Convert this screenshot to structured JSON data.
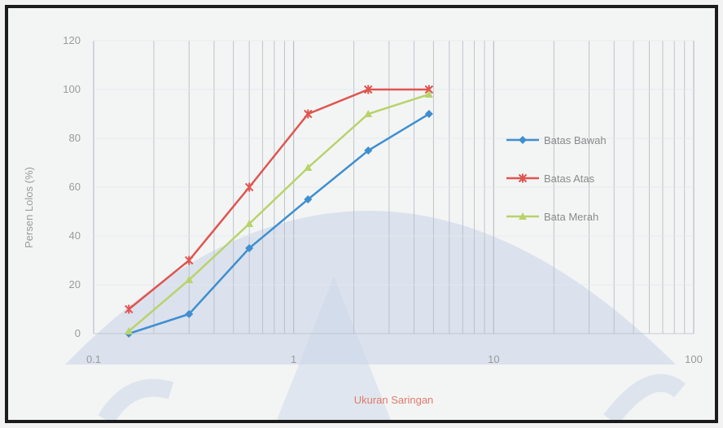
{
  "chart_data": {
    "type": "line",
    "title": "",
    "xlabel": "Ukuran Saringan",
    "ylabel": "Persen Lolos (%)",
    "x_scale": "log",
    "xlim": [
      0.1,
      100
    ],
    "ylim": [
      0,
      120
    ],
    "x_ticks": [
      0.1,
      1,
      10,
      100
    ],
    "x_tick_labels": [
      "0.1",
      "1",
      "10",
      "100"
    ],
    "y_ticks": [
      0,
      20,
      40,
      60,
      80,
      100,
      120
    ],
    "y_tick_labels": [
      "0",
      "20",
      "40",
      "60",
      "80",
      "100",
      "120"
    ],
    "grid": "vertical",
    "legend_position": "right",
    "x": [
      0.15,
      0.3,
      0.6,
      1.18,
      2.36,
      4.75
    ],
    "series": [
      {
        "name": "Batas Bawah",
        "color": "#3f8fd0",
        "marker": "diamond",
        "values": [
          0,
          8,
          35,
          55,
          75,
          90
        ]
      },
      {
        "name": "Batas Atas",
        "color": "#e0554f",
        "marker": "star",
        "values": [
          10,
          30,
          60,
          90,
          100,
          100
        ]
      },
      {
        "name": "Bata Merah",
        "color": "#b8d36a",
        "marker": "triangle",
        "values": [
          1,
          22,
          45,
          68,
          90,
          98
        ]
      }
    ]
  }
}
